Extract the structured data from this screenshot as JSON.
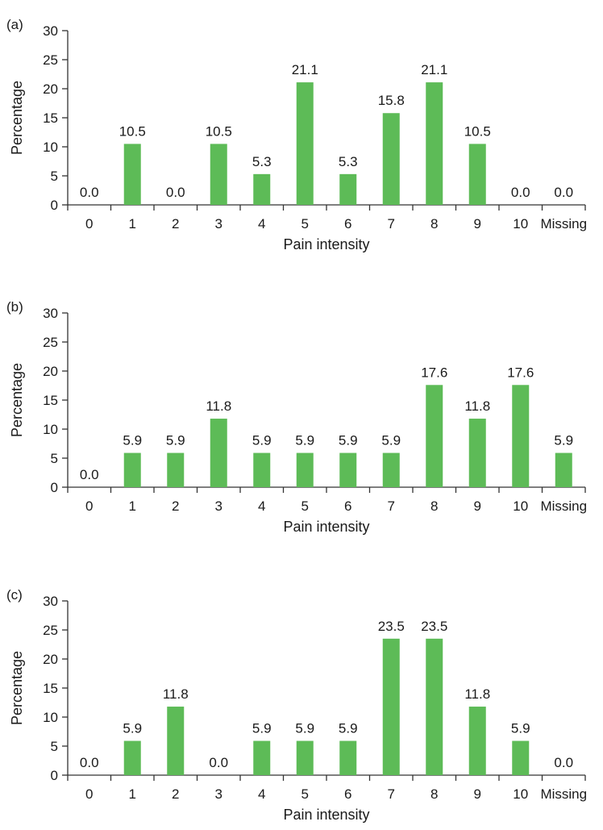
{
  "colors": {
    "bar": "#5dbb57",
    "axis": "#333333",
    "text": "#1a1a1a"
  },
  "chart_data": [
    {
      "type": "bar",
      "panel_label": "(a)",
      "xlabel": "Pain intensity",
      "ylabel": "Percentage",
      "ylim": [
        0,
        30
      ],
      "yticks": [
        "0",
        "5",
        "10",
        "15",
        "20",
        "25",
        "30"
      ],
      "categories": [
        "0",
        "1",
        "2",
        "3",
        "4",
        "5",
        "6",
        "7",
        "8",
        "9",
        "10",
        "Missing"
      ],
      "values": [
        0.0,
        10.5,
        0.0,
        10.5,
        5.3,
        21.1,
        5.3,
        15.8,
        21.1,
        10.5,
        0.0,
        0.0
      ],
      "data_labels": [
        "0.0",
        "10.5",
        "0.0",
        "10.5",
        "5.3",
        "21.1",
        "5.3",
        "15.8",
        "21.1",
        "10.5",
        "0.0",
        "0.0"
      ],
      "grid": false
    },
    {
      "type": "bar",
      "panel_label": "(b)",
      "xlabel": "Pain intensity",
      "ylabel": "Percentage",
      "ylim": [
        0,
        30
      ],
      "yticks": [
        "0",
        "5",
        "10",
        "15",
        "20",
        "25",
        "30"
      ],
      "categories": [
        "0",
        "1",
        "2",
        "3",
        "4",
        "5",
        "6",
        "7",
        "8",
        "9",
        "10",
        "Missing"
      ],
      "values": [
        0.0,
        5.9,
        5.9,
        11.8,
        5.9,
        5.9,
        5.9,
        5.9,
        17.6,
        11.8,
        17.6,
        5.9
      ],
      "data_labels": [
        "0.0",
        "5.9",
        "5.9",
        "11.8",
        "5.9",
        "5.9",
        "5.9",
        "5.9",
        "17.6",
        "11.8",
        "17.6",
        "5.9"
      ],
      "grid": false
    },
    {
      "type": "bar",
      "panel_label": "(c)",
      "xlabel": "Pain intensity",
      "ylabel": "Percentage",
      "ylim": [
        0,
        30
      ],
      "yticks": [
        "0",
        "5",
        "10",
        "15",
        "20",
        "25",
        "30"
      ],
      "categories": [
        "0",
        "1",
        "2",
        "3",
        "4",
        "5",
        "6",
        "7",
        "8",
        "9",
        "10",
        "Missing"
      ],
      "values": [
        0.0,
        5.9,
        11.8,
        0.0,
        5.9,
        5.9,
        5.9,
        23.5,
        23.5,
        11.8,
        5.9,
        0.0
      ],
      "data_labels": [
        "0.0",
        "5.9",
        "11.8",
        "0.0",
        "5.9",
        "5.9",
        "5.9",
        "23.5",
        "23.5",
        "11.8",
        "5.9",
        "0.0"
      ],
      "grid": false
    }
  ]
}
